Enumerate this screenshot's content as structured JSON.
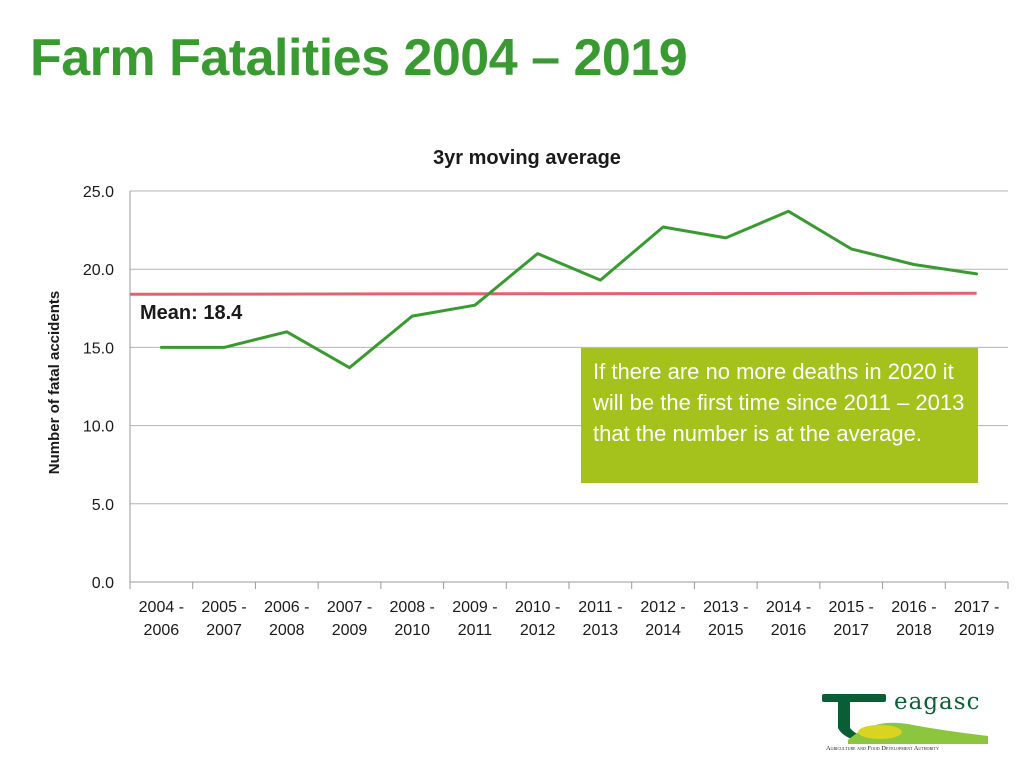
{
  "slide": {
    "title": "Farm Fatalities 2004 – 2019",
    "title_color": "#3a9a32"
  },
  "callout": {
    "text": "If there are no more deaths in 2020 it will be the first time since 2011 – 2013 that the number is at the average.",
    "background": "#a4c11c"
  },
  "logo": {
    "wordmark": "eagasc",
    "tagline": "Agriculture and Food Development Authority",
    "colors": {
      "dark_green": "#0a5e36",
      "light_green": "#8cc63f",
      "yellow": "#d9d41f"
    }
  },
  "chart_data": {
    "type": "line",
    "title": "3yr moving average",
    "xlabel": "",
    "ylabel": "Number of fatal accidents",
    "ylim": [
      0,
      25
    ],
    "yticks": [
      "0.0",
      "5.0",
      "10.0",
      "15.0",
      "20.0",
      "25.0"
    ],
    "grid": true,
    "categories": [
      [
        "2004 -",
        "2006"
      ],
      [
        "2005 -",
        "2007"
      ],
      [
        "2006 -",
        "2008"
      ],
      [
        "2007 -",
        "2009"
      ],
      [
        "2008 -",
        "2010"
      ],
      [
        "2009 -",
        "2011"
      ],
      [
        "2010 -",
        "2012"
      ],
      [
        "2011 -",
        "2013"
      ],
      [
        "2012 -",
        "2014"
      ],
      [
        "2013 -",
        "2015"
      ],
      [
        "2014 -",
        "2016"
      ],
      [
        "2015 -",
        "2017"
      ],
      [
        "2016 -",
        "2018"
      ],
      [
        "2017 -",
        "2019"
      ]
    ],
    "series": [
      {
        "name": "",
        "color": "#3a9a32",
        "values": [
          15.0,
          15.0,
          16.0,
          13.7,
          17.0,
          17.7,
          21.0,
          19.3,
          22.7,
          22.0,
          23.7,
          21.3,
          20.3,
          19.7
        ]
      }
    ],
    "mean_line": {
      "value": 18.4,
      "label": "Mean: 18.4",
      "color": "#e0636d"
    }
  }
}
